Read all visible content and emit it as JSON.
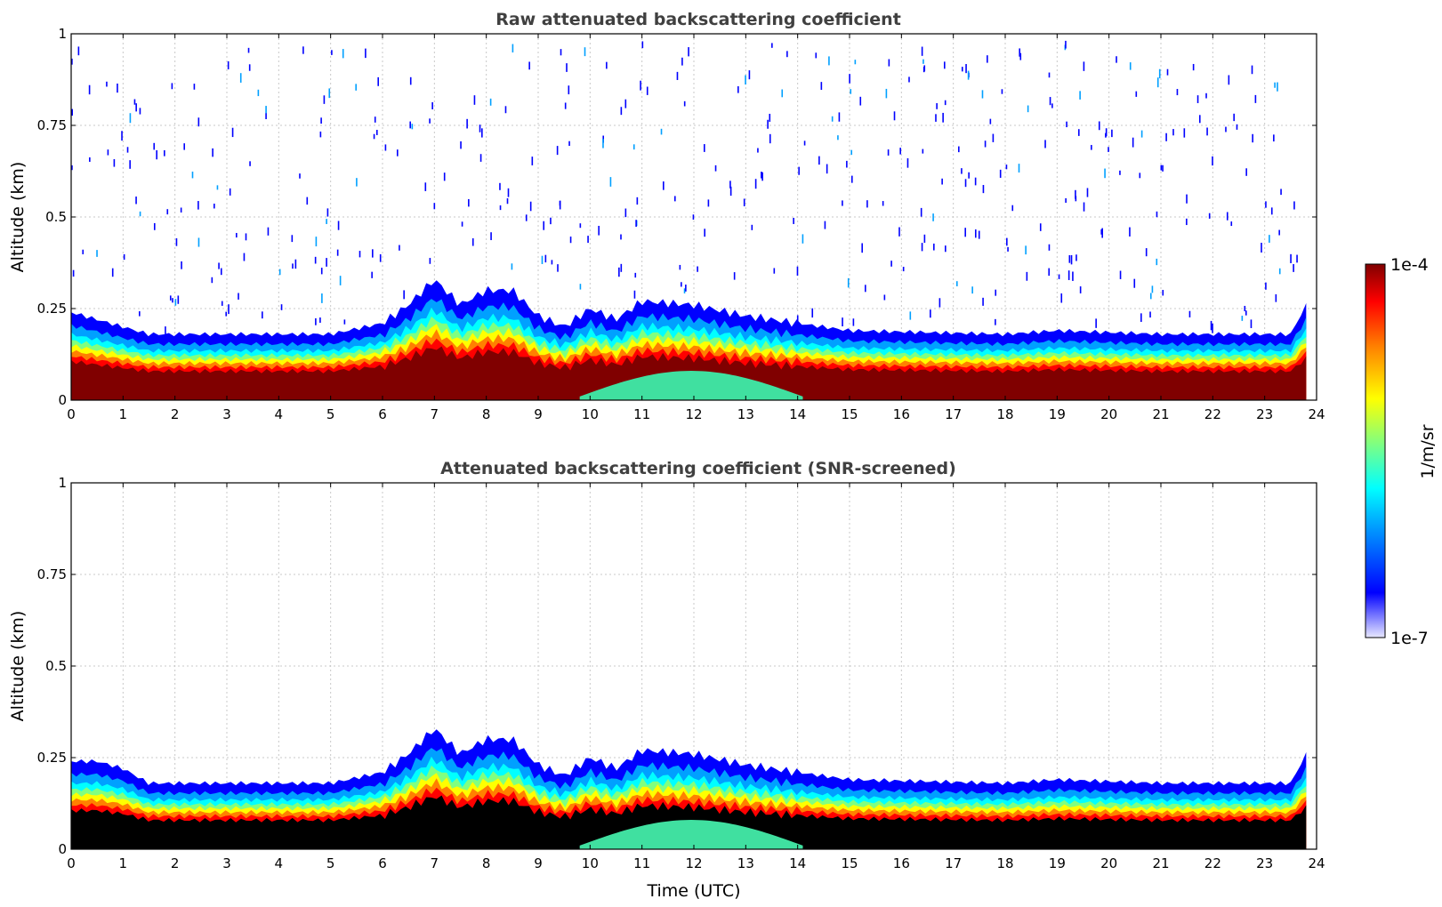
{
  "chart_data": [
    {
      "type": "heatmap",
      "title": "Raw attenuated backscattering coefficient",
      "xlabel": "",
      "ylabel": "Altitude (km)",
      "xlim": [
        0,
        24
      ],
      "ylim": [
        0,
        1
      ],
      "xticks": [
        "0",
        "1",
        "2",
        "3",
        "4",
        "5",
        "6",
        "7",
        "8",
        "9",
        "10",
        "11",
        "12",
        "13",
        "14",
        "15",
        "16",
        "17",
        "18",
        "19",
        "20",
        "21",
        "22",
        "23",
        "24"
      ],
      "yticks": [
        "0",
        "0.25",
        "0.5",
        "0.75",
        "1"
      ],
      "grid": true,
      "masked_color": "#ffffff",
      "layer_top_km": [
        {
          "t": 0,
          "h": 0.24
        },
        {
          "t": 0.5,
          "h": 0.22
        },
        {
          "t": 1,
          "h": 0.2
        },
        {
          "t": 1.5,
          "h": 0.18
        },
        {
          "t": 3,
          "h": 0.18
        },
        {
          "t": 5,
          "h": 0.18
        },
        {
          "t": 6,
          "h": 0.21
        },
        {
          "t": 6.5,
          "h": 0.26
        },
        {
          "t": 7,
          "h": 0.33
        },
        {
          "t": 7.5,
          "h": 0.26
        },
        {
          "t": 8,
          "h": 0.3
        },
        {
          "t": 8.5,
          "h": 0.3
        },
        {
          "t": 9,
          "h": 0.23
        },
        {
          "t": 9.5,
          "h": 0.2
        },
        {
          "t": 10,
          "h": 0.25
        },
        {
          "t": 10.5,
          "h": 0.22
        },
        {
          "t": 11,
          "h": 0.27
        },
        {
          "t": 12,
          "h": 0.26
        },
        {
          "t": 13,
          "h": 0.23
        },
        {
          "t": 14,
          "h": 0.21
        },
        {
          "t": 15,
          "h": 0.19
        },
        {
          "t": 18,
          "h": 0.18
        },
        {
          "t": 19,
          "h": 0.19
        },
        {
          "t": 21,
          "h": 0.18
        },
        {
          "t": 23.5,
          "h": 0.18
        },
        {
          "t": 23.8,
          "h": 0.26
        }
      ]
    },
    {
      "type": "heatmap",
      "title": "Attenuated backscattering coefficient (SNR-screened)",
      "xlabel": "Time (UTC)",
      "ylabel": "Altitude (km)",
      "xlim": [
        0,
        24
      ],
      "ylim": [
        0,
        1
      ],
      "xticks": [
        "0",
        "1",
        "2",
        "3",
        "4",
        "5",
        "6",
        "7",
        "8",
        "9",
        "10",
        "11",
        "12",
        "13",
        "14",
        "15",
        "16",
        "17",
        "18",
        "19",
        "20",
        "21",
        "22",
        "23",
        "24"
      ],
      "yticks": [
        "0",
        "0.25",
        "0.5",
        "0.75",
        "1"
      ],
      "grid": true,
      "masked_color": "#000000",
      "layer_top_km": [
        {
          "t": 0,
          "h": 0.24
        },
        {
          "t": 0.5,
          "h": 0.24
        },
        {
          "t": 1,
          "h": 0.22
        },
        {
          "t": 1.5,
          "h": 0.18
        },
        {
          "t": 3,
          "h": 0.18
        },
        {
          "t": 5,
          "h": 0.18
        },
        {
          "t": 6,
          "h": 0.21
        },
        {
          "t": 6.5,
          "h": 0.26
        },
        {
          "t": 7,
          "h": 0.33
        },
        {
          "t": 7.5,
          "h": 0.26
        },
        {
          "t": 8,
          "h": 0.3
        },
        {
          "t": 8.5,
          "h": 0.3
        },
        {
          "t": 9,
          "h": 0.23
        },
        {
          "t": 9.5,
          "h": 0.2
        },
        {
          "t": 10,
          "h": 0.25
        },
        {
          "t": 10.5,
          "h": 0.22
        },
        {
          "t": 11,
          "h": 0.27
        },
        {
          "t": 12,
          "h": 0.26
        },
        {
          "t": 13,
          "h": 0.23
        },
        {
          "t": 14,
          "h": 0.21
        },
        {
          "t": 15,
          "h": 0.19
        },
        {
          "t": 18,
          "h": 0.18
        },
        {
          "t": 19,
          "h": 0.19
        },
        {
          "t": 21,
          "h": 0.18
        },
        {
          "t": 23.5,
          "h": 0.18
        },
        {
          "t": 23.8,
          "h": 0.26
        }
      ]
    }
  ],
  "colorbar": {
    "label": "1/m/sr",
    "max_label": "1e-4",
    "min_label": "1e-7",
    "scale": "log",
    "colormap": [
      "#e8e8ff",
      "#0000ff",
      "#00a0ff",
      "#00ffff",
      "#80ff80",
      "#ffff00",
      "#ff8000",
      "#ff0000",
      "#800000"
    ]
  }
}
